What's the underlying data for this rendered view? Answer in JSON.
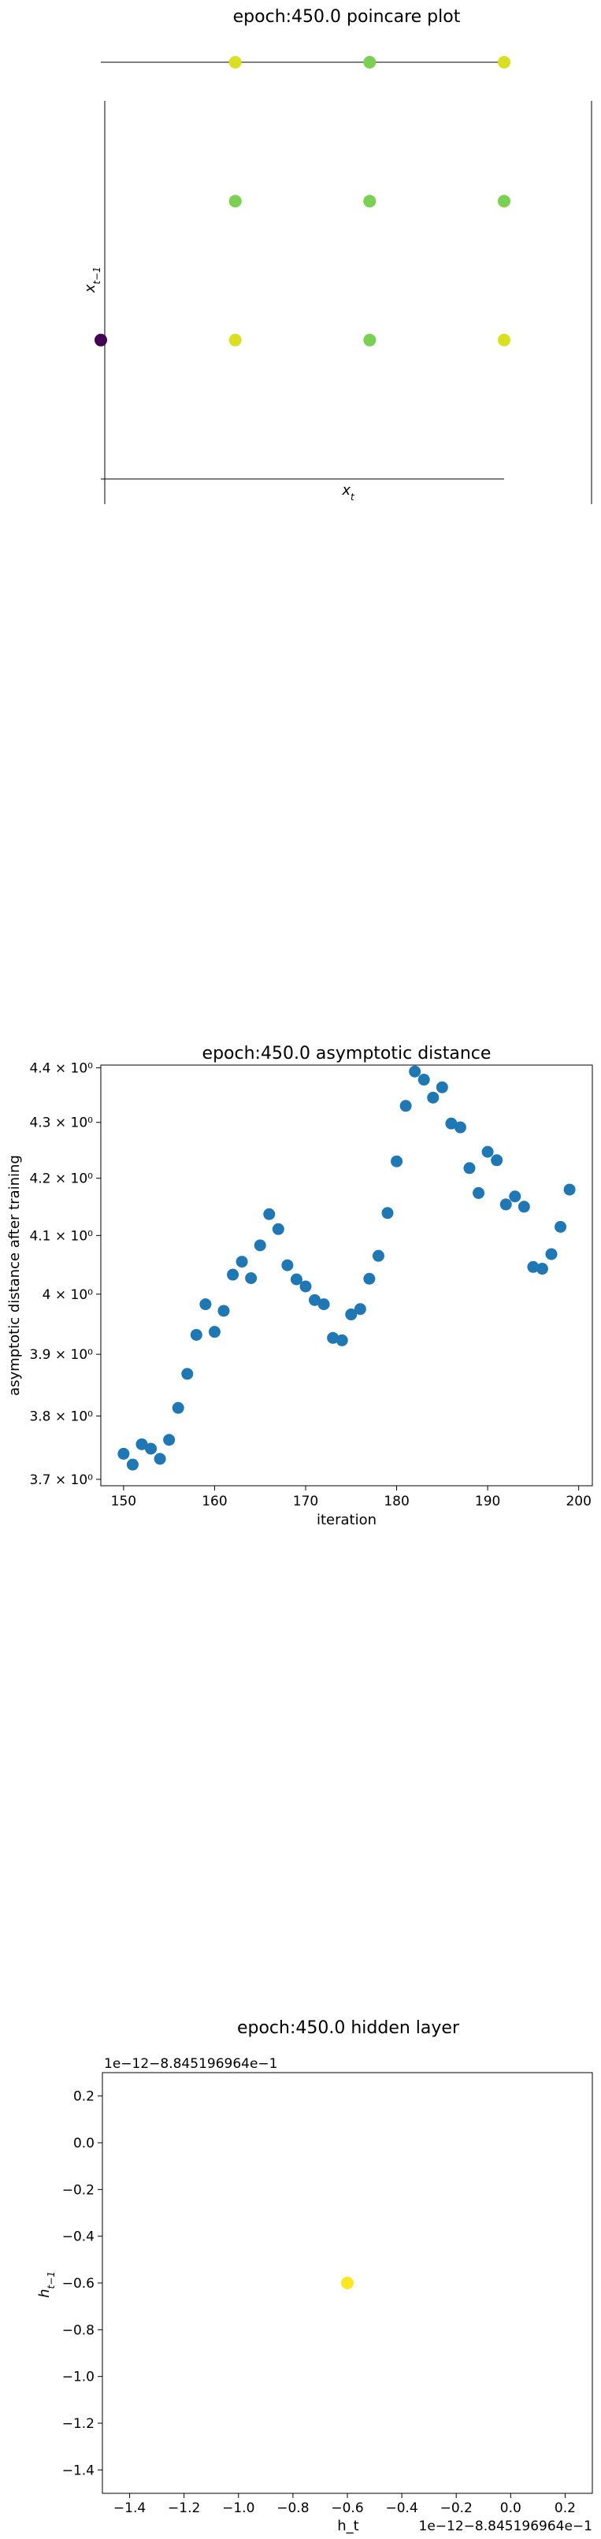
{
  "charts": [
    {
      "type": "scatter",
      "title": "epoch:450.0 poincare plot",
      "xlabel": "x_t",
      "ylabel": "x_{t−1}",
      "xlim": [
        0,
        3
      ],
      "ylim": [
        0,
        3
      ],
      "grid": false,
      "points": [
        {
          "x": 1,
          "y": 3,
          "color": "#d9e021"
        },
        {
          "x": 2,
          "y": 3,
          "color": "#7ad151"
        },
        {
          "x": 3,
          "y": 3,
          "color": "#d9e021"
        },
        {
          "x": 1,
          "y": 2,
          "color": "#7ad151"
        },
        {
          "x": 2,
          "y": 2,
          "color": "#7ad151"
        },
        {
          "x": 3,
          "y": 2,
          "color": "#7ad151"
        },
        {
          "x": 0,
          "y": 1,
          "color": "#440154"
        },
        {
          "x": 1,
          "y": 1,
          "color": "#d9e021"
        },
        {
          "x": 2,
          "y": 1,
          "color": "#7ad151"
        },
        {
          "x": 3,
          "y": 1,
          "color": "#d9e021"
        }
      ]
    },
    {
      "type": "scatter",
      "title": "epoch:450.0 asymptotic distance",
      "xlabel": "iteration",
      "ylabel": "asymptotic distance after training",
      "y_scale": "log",
      "xlim": [
        147.5,
        201.5
      ],
      "ylim": [
        3.69,
        4.405
      ],
      "xticks": [
        150,
        160,
        170,
        180,
        190,
        200
      ],
      "yticks": [
        3.7,
        3.8,
        3.9,
        4.0,
        4.1,
        4.2,
        4.3,
        4.4
      ],
      "ytick_labels": [
        "3.7 × 10⁰",
        "3.8 × 10⁰",
        "3.9 × 10⁰",
        "4 × 10⁰",
        "4.1 × 10⁰",
        "4.2 × 10⁰",
        "4.3 × 10⁰",
        "4.4 × 10⁰"
      ],
      "color": "#1f77b4",
      "x": [
        150,
        151,
        152,
        153,
        154,
        155,
        156,
        157,
        158,
        159,
        160,
        161,
        162,
        163,
        164,
        165,
        166,
        167,
        168,
        169,
        170,
        171,
        172,
        173,
        174,
        175,
        176,
        177,
        178,
        179,
        180,
        181,
        182,
        183,
        184,
        185,
        186,
        187,
        188,
        189,
        190,
        191,
        192,
        193,
        194,
        195,
        196,
        197,
        198,
        199
      ],
      "y": [
        3.74,
        3.723,
        3.755,
        3.748,
        3.732,
        3.762,
        3.813,
        3.868,
        3.932,
        3.983,
        3.937,
        3.972,
        4.033,
        4.055,
        4.027,
        4.083,
        4.137,
        4.111,
        4.049,
        4.025,
        4.013,
        3.99,
        3.983,
        3.927,
        3.923,
        3.966,
        3.975,
        4.026,
        4.065,
        4.139,
        4.23,
        4.33,
        4.393,
        4.378,
        4.345,
        4.364,
        4.298,
        4.291,
        4.218,
        4.174,
        4.247,
        4.232,
        4.154,
        4.168,
        4.15,
        4.046,
        4.043,
        4.068,
        4.115,
        4.18
      ]
    },
    {
      "type": "scatter",
      "title": "epoch:450.0 hidden layer",
      "xlabel": "h_t",
      "ylabel": "h_{t−1}",
      "xlim": [
        -1.5,
        0.3
      ],
      "ylim": [
        -1.5,
        0.3
      ],
      "xticks": [
        "−1.4",
        "−1.2",
        "−1.0",
        "−0.8",
        "−0.6",
        "−0.4",
        "−0.2",
        "0.0",
        "0.2"
      ],
      "yticks": [
        "0.2",
        "0.0",
        "−0.2",
        "−0.4",
        "−0.6",
        "−0.8",
        "−1.0",
        "−1.2",
        "−1.4"
      ],
      "offset_label": "1e−12−8.845196964e−1",
      "points": [
        {
          "x": -0.6,
          "y": -0.6,
          "color": "#fde725"
        }
      ]
    }
  ]
}
